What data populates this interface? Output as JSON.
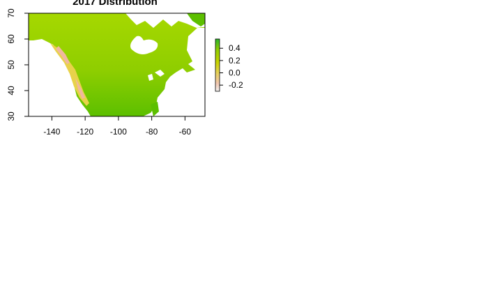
{
  "title": "2017 Distribution",
  "axes": {
    "x_ticks": [
      -140,
      -120,
      -100,
      -80,
      -60
    ],
    "y_ticks": [
      30,
      40,
      50,
      60,
      70
    ],
    "xlim": [
      -154,
      -48
    ],
    "ylim": [
      30,
      70
    ]
  },
  "legend": {
    "ticks": [
      "0.4",
      "0.2",
      "0.0",
      "-0.2"
    ],
    "tick_values": [
      0.4,
      0.2,
      0.0,
      -0.2
    ],
    "range": [
      -0.3,
      0.55
    ],
    "colors": [
      "#f2f2f2",
      "#f2c7b0",
      "#e6d15a",
      "#c8d400",
      "#8fce00",
      "#2bb52b"
    ]
  },
  "colors": {
    "land_main": "#8fce00",
    "land_north": "#a6d800",
    "land_south": "#5cbf00",
    "west_coast": "#e8d24a",
    "west_coast_low": "#f0b8a0"
  }
}
